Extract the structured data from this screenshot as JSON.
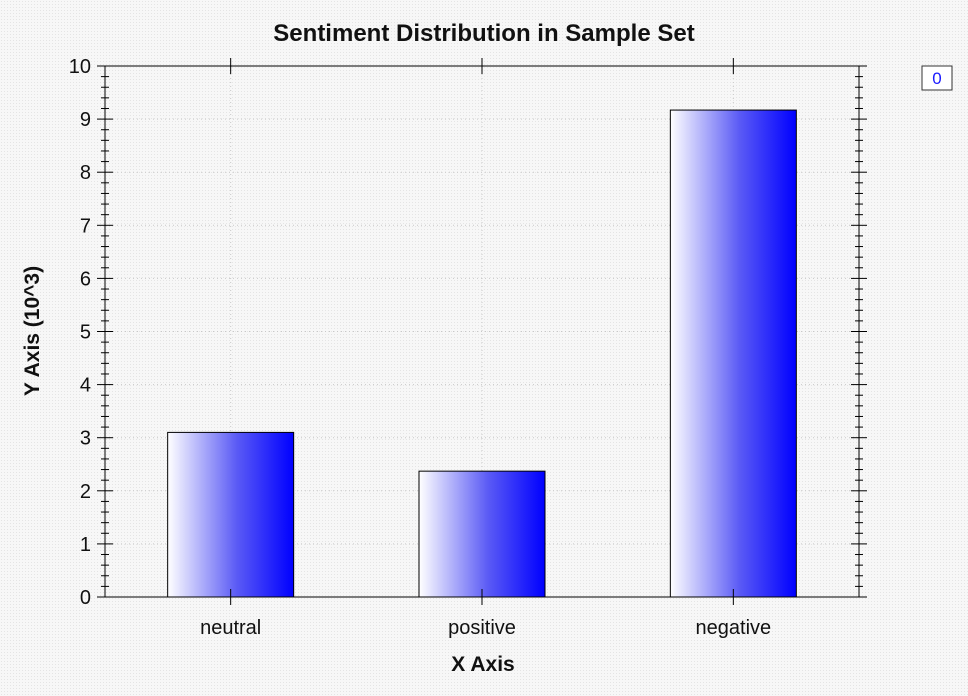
{
  "chart_data": {
    "type": "bar",
    "title": "Sentiment Distribution in Sample Set",
    "xlabel": "X Axis",
    "ylabel": "Y Axis (10^3)",
    "categories": [
      "neutral",
      "positive",
      "negative"
    ],
    "series": [
      {
        "name": "0",
        "values": [
          3.1,
          2.37,
          9.17
        ]
      }
    ],
    "ylim": [
      0,
      10
    ],
    "yticks": [
      "0",
      "1",
      "2",
      "3",
      "4",
      "5",
      "6",
      "7",
      "8",
      "9",
      "10"
    ],
    "grid": true,
    "legend_position": "top-right",
    "colors": {
      "bar_start": "#ffffff",
      "bar_end": "#0000ff",
      "axis": "#000000",
      "grid": "#c8c8c8",
      "legend_text": "#1a1aff",
      "legend_border": "#333333"
    }
  }
}
